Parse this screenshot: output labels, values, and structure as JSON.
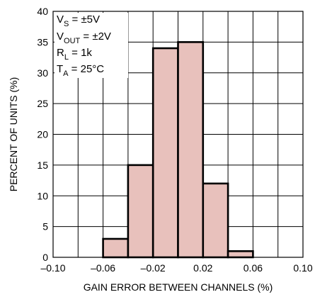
{
  "chart_data": {
    "type": "bar",
    "title": "",
    "xlabel": "GAIN ERROR BETWEEN CHANNELS (%)",
    "ylabel": "PERCENT OF UNITS (%)",
    "xlim": [
      -0.1,
      0.1
    ],
    "ylim": [
      0,
      40
    ],
    "x_ticks": [
      "–0.10",
      "–0.06",
      "–0.02",
      "0.02",
      "0.06",
      "0.10"
    ],
    "y_ticks": [
      "0",
      "5",
      "10",
      "15",
      "20",
      "25",
      "30",
      "35",
      "40"
    ],
    "grid": true,
    "bin_width": 0.02,
    "bins": [
      {
        "start": -0.06,
        "end": -0.04,
        "value": 3
      },
      {
        "start": -0.04,
        "end": -0.02,
        "value": 15
      },
      {
        "start": -0.02,
        "end": 0.0,
        "value": 34
      },
      {
        "start": 0.0,
        "end": 0.02,
        "value": 35
      },
      {
        "start": 0.02,
        "end": 0.04,
        "value": 12
      },
      {
        "start": 0.04,
        "end": 0.06,
        "value": 1
      }
    ],
    "bar_color": "#e8c1bc",
    "conditions": [
      {
        "main": "V",
        "sub": "S",
        "rest": " = ±5V"
      },
      {
        "main": "V",
        "sub": "OUT",
        "rest": " = ±2V"
      },
      {
        "main": "R",
        "sub": "L",
        "rest": " = 1k"
      },
      {
        "main": "T",
        "sub": "A",
        "rest": " = 25°C"
      }
    ]
  }
}
